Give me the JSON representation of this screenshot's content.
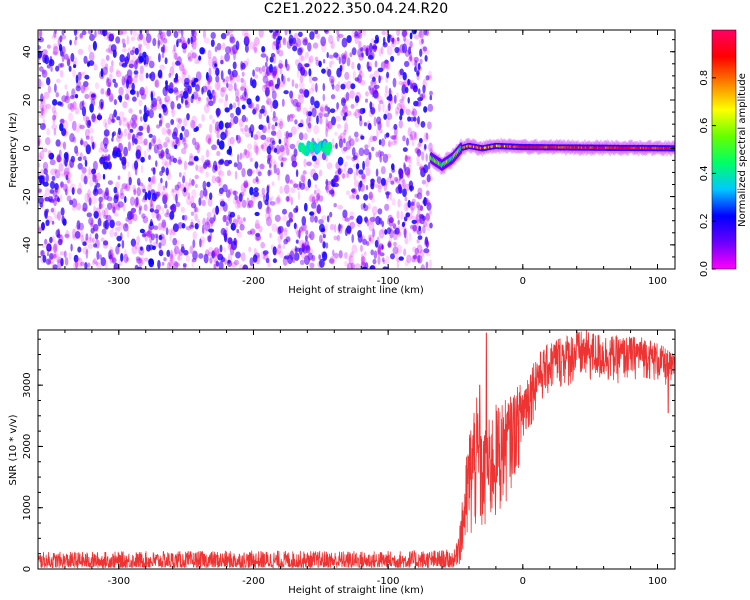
{
  "page_title": "C2E1.2022.350.04.24.R20",
  "chart_data": [
    {
      "type": "heatmap",
      "title": "",
      "xlabel": "Height of straight line (km)",
      "ylabel": "Frequency (Hz)",
      "xlim": [
        -360,
        113
      ],
      "ylim": [
        -50,
        49
      ],
      "xticks": [
        -300,
        -200,
        -100,
        0,
        100
      ],
      "yticks": [
        -40,
        -20,
        0,
        20,
        40
      ],
      "grid": false,
      "noise_region_x": [
        -360,
        -68
      ],
      "burst": {
        "x_range": [
          -165,
          -143
        ],
        "frequency": 0
      },
      "signal_track": [
        {
          "x": -68,
          "frequency": -4
        },
        {
          "x": -60,
          "frequency": -7
        },
        {
          "x": -52,
          "frequency": -4
        },
        {
          "x": -46,
          "frequency": 0
        },
        {
          "x": -40,
          "frequency": 1
        },
        {
          "x": -30,
          "frequency": 0
        },
        {
          "x": -20,
          "frequency": 1
        },
        {
          "x": 0,
          "frequency": 0.5
        },
        {
          "x": 113,
          "frequency": 0
        }
      ],
      "colorbar": {
        "label": "Normalized spectral amplitude",
        "range": [
          0,
          1
        ],
        "ticks": [
          "0.0",
          "0.2",
          "0.4",
          "0.6",
          "0.8"
        ],
        "stops": [
          "#ff00ff",
          "#6a00ff",
          "#0000ff",
          "#00c8ff",
          "#00ff66",
          "#66ff00",
          "#ffff00",
          "#ff8000",
          "#ff0000",
          "#ff0066"
        ]
      }
    },
    {
      "type": "line",
      "title": "",
      "xlabel": "Height of straight line (km)",
      "ylabel": "SNR (10 * v/v)",
      "xlim": [
        -360,
        113
      ],
      "ylim": [
        0,
        3900
      ],
      "xticks": [
        -300,
        -200,
        -100,
        0,
        100
      ],
      "yticks": [
        0,
        1000,
        2000,
        3000
      ],
      "grid": false,
      "series": [
        {
          "color": "#ee3333",
          "envelope": [
            {
              "x": -360,
              "low": 20,
              "high": 280
            },
            {
              "x": -200,
              "low": 20,
              "high": 300
            },
            {
              "x": -100,
              "low": 20,
              "high": 300
            },
            {
              "x": -50,
              "low": 20,
              "high": 320
            },
            {
              "x": -45,
              "low": 50,
              "high": 1100
            },
            {
              "x": -40,
              "low": 150,
              "high": 2300
            },
            {
              "x": -35,
              "low": 400,
              "high": 2900
            },
            {
              "x": -30,
              "low": 400,
              "high": 2200
            },
            {
              "x": -20,
              "low": 600,
              "high": 2700
            },
            {
              "x": -10,
              "low": 1200,
              "high": 2800
            },
            {
              "x": 0,
              "low": 1800,
              "high": 3100
            },
            {
              "x": 10,
              "low": 2600,
              "high": 3500
            },
            {
              "x": 25,
              "low": 2900,
              "high": 3800
            },
            {
              "x": 45,
              "low": 3000,
              "high": 3900
            },
            {
              "x": 70,
              "low": 3000,
              "high": 3800
            },
            {
              "x": 90,
              "low": 3100,
              "high": 3800
            },
            {
              "x": 100,
              "low": 3000,
              "high": 3700
            },
            {
              "x": 113,
              "low": 2900,
              "high": 3500
            }
          ],
          "spikes": [
            {
              "x": -27,
              "value": 3850
            },
            {
              "x": -32,
              "value": 3000
            },
            {
              "x": 40,
              "value": 3900
            },
            {
              "x": 108,
              "value": 2550
            }
          ]
        }
      ]
    }
  ]
}
